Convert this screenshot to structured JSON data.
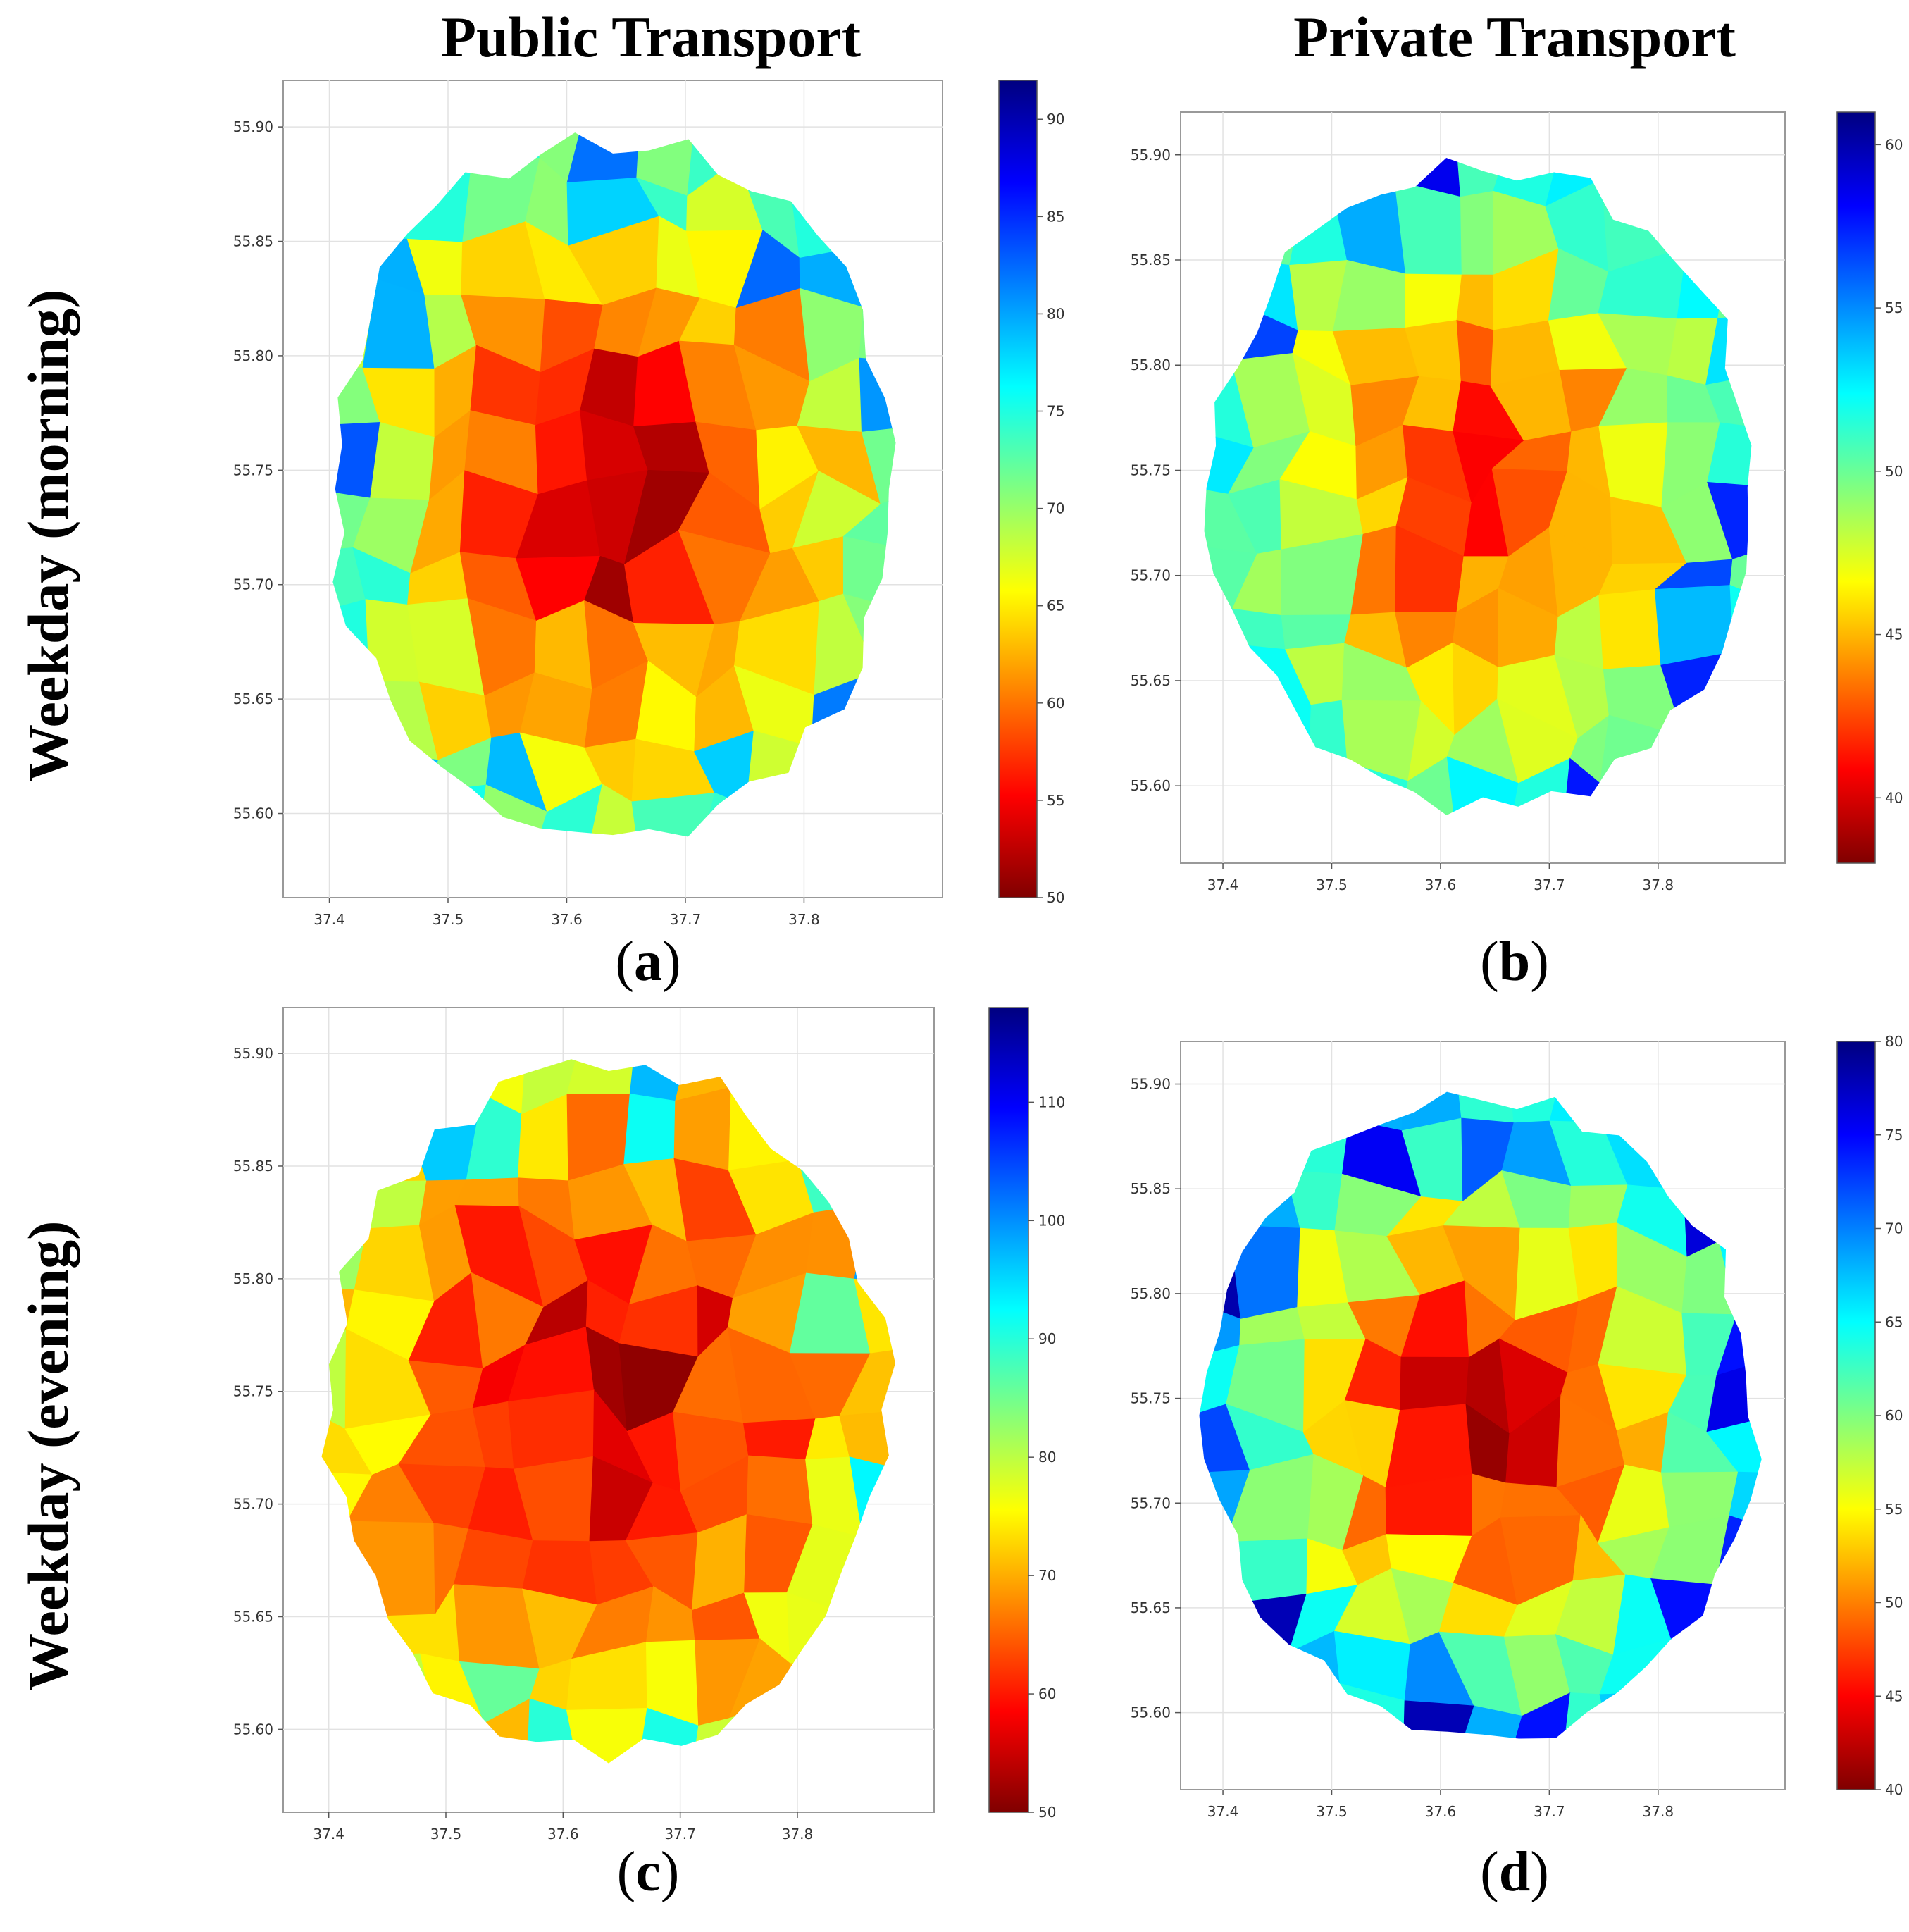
{
  "figure": {
    "column_titles": [
      "Public Transport",
      "Private Transport"
    ],
    "row_titles": [
      "Weekday (morning)",
      "Weekday (evening)"
    ],
    "colormap": [
      "#800000",
      "#ff0000",
      "#ff8000",
      "#ffff00",
      "#80ff80",
      "#00ffff",
      "#0080ff",
      "#0000ff",
      "#000080"
    ]
  },
  "panels": [
    {
      "caption_open": "(",
      "caption_letter": "a",
      "caption_close": ")",
      "x_ticks": [
        "37.4",
        "37.5",
        "37.6",
        "37.7",
        "37.8"
      ],
      "y_ticks": [
        "55.90",
        "55.85",
        "55.80",
        "55.75",
        "55.70",
        "55.65",
        "55.60"
      ],
      "colorbar_ticks": [
        "90",
        "85",
        "80",
        "75",
        "70",
        "65",
        "60",
        "55",
        "50"
      ],
      "colorbar_range": [
        50,
        92
      ],
      "center_value": 50,
      "edge_value": 72
    },
    {
      "caption_open": "(",
      "caption_letter": "b",
      "caption_close": ")",
      "x_ticks": [
        "37.4",
        "37.5",
        "37.6",
        "37.7",
        "37.8"
      ],
      "y_ticks": [
        "55.90",
        "55.85",
        "55.80",
        "55.75",
        "55.70",
        "55.65",
        "55.60"
      ],
      "colorbar_ticks": [
        "60",
        "55",
        "50",
        "45",
        "40"
      ],
      "colorbar_range": [
        38,
        61
      ],
      "center_value": 41,
      "edge_value": 52
    },
    {
      "caption_open": "(",
      "caption_letter": "c",
      "caption_close": ")",
      "x_ticks": [
        "37.4",
        "37.5",
        "37.6",
        "37.7",
        "37.8"
      ],
      "y_ticks": [
        "55.90",
        "55.85",
        "55.80",
        "55.75",
        "55.70",
        "55.65",
        "55.60"
      ],
      "colorbar_ticks": [
        "110",
        "100",
        "90",
        "80",
        "70",
        "60",
        "50"
      ],
      "colorbar_range": [
        50,
        118
      ],
      "center_value": 52,
      "edge_value": 76
    },
    {
      "caption_open": "(",
      "caption_letter": "d",
      "caption_close": ")",
      "x_ticks": [
        "37.4",
        "37.5",
        "37.6",
        "37.7",
        "37.8"
      ],
      "y_ticks": [
        "55.90",
        "55.85",
        "55.80",
        "55.75",
        "55.70",
        "55.65",
        "55.60"
      ],
      "colorbar_ticks": [
        "80",
        "75",
        "70",
        "65",
        "60",
        "55",
        "50",
        "45",
        "40"
      ],
      "colorbar_range": [
        40,
        80
      ],
      "center_value": 42,
      "edge_value": 66
    }
  ]
}
